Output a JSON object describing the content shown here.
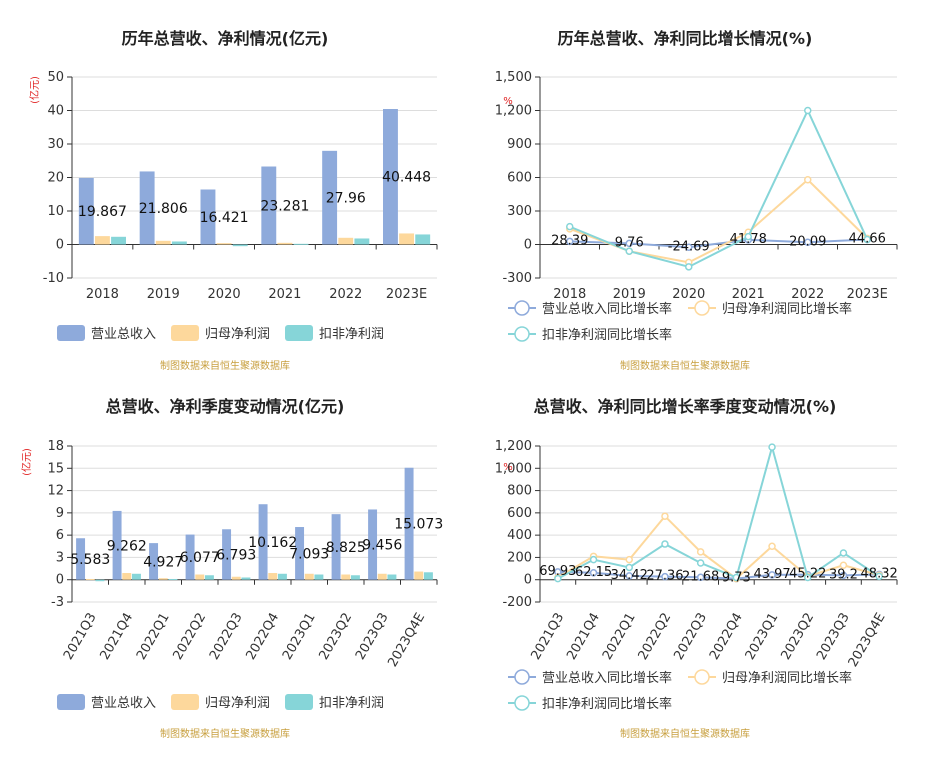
{
  "colors": {
    "revenue": "#8eaadb",
    "parent_profit": "#fdd89c",
    "deducted_profit": "#86d5d8",
    "grid": "#dddddd",
    "axis": "#333333",
    "unit": "#e02020",
    "source": "#c8a040",
    "title": "#222222"
  },
  "source_note": "制图数据来自恒生聚源数据库",
  "chart_data": [
    {
      "id": "annual-amount",
      "type": "bar",
      "title": "历年总营收、净利情况(亿元)",
      "unit": "(亿元)",
      "ylim": [
        -10,
        50
      ],
      "yticks": [
        -10,
        0,
        10,
        20,
        30,
        40,
        50
      ],
      "grid": true,
      "legend_position": "bottom",
      "categories": [
        "2018",
        "2019",
        "2020",
        "2021",
        "2022",
        "2023E"
      ],
      "series": [
        {
          "name": "营业总收入",
          "values": [
            19.867,
            21.806,
            16.421,
            23.281,
            27.96,
            40.448
          ],
          "labels": [
            "19.867",
            "21.806",
            "16.421",
            "23.281",
            "27.96",
            "40.448"
          ]
        },
        {
          "name": "归母净利润",
          "values": [
            2.5,
            1.1,
            0.4,
            0.5,
            2.0,
            3.3
          ]
        },
        {
          "name": "扣非净利润",
          "values": [
            2.3,
            0.9,
            -0.5,
            0.2,
            1.8,
            3.0
          ]
        }
      ]
    },
    {
      "id": "annual-growth",
      "type": "line",
      "title": "历年总营收、净利同比增长情况(%)",
      "unit": "%",
      "ylim": [
        -300,
        1500
      ],
      "yticks": [
        -300,
        0,
        300,
        600,
        900,
        1200,
        1500
      ],
      "ytick_labels": [
        "-300",
        "0",
        "300",
        "600",
        "900",
        "1,200",
        "1,500"
      ],
      "grid": true,
      "legend_position": "bottom",
      "categories": [
        "2018",
        "2019",
        "2020",
        "2021",
        "2022",
        "2023E"
      ],
      "series": [
        {
          "name": "营业总收入同比增长率",
          "values": [
            28.39,
            9.76,
            -24.69,
            41.78,
            20.09,
            44.66
          ],
          "labels": [
            "28.39",
            "9.76",
            "-24.69",
            "41.78",
            "20.09",
            "44.66"
          ]
        },
        {
          "name": "归母净利润同比增长率",
          "values": [
            140,
            -60,
            -160,
            110,
            580,
            55
          ]
        },
        {
          "name": "扣非净利润同比增长率",
          "values": [
            160,
            -60,
            -200,
            70,
            1200,
            45
          ]
        }
      ]
    },
    {
      "id": "quarterly-amount",
      "type": "bar",
      "title": "总营收、净利季度变动情况(亿元)",
      "unit": "(亿元)",
      "ylim": [
        -3,
        18
      ],
      "yticks": [
        -3,
        0,
        3,
        6,
        9,
        12,
        15,
        18
      ],
      "grid": true,
      "legend_position": "bottom",
      "categories": [
        "2021Q3",
        "2021Q4",
        "2022Q1",
        "2022Q2",
        "2022Q3",
        "2022Q4",
        "2023Q1",
        "2023Q2",
        "2023Q3",
        "2023Q4E"
      ],
      "series": [
        {
          "name": "营业总收入",
          "values": [
            5.583,
            9.262,
            4.927,
            6.077,
            6.793,
            10.162,
            7.093,
            8.825,
            9.456,
            15.073
          ],
          "labels": [
            "5.583",
            "9.262",
            "4.927",
            "6.077",
            "6.793",
            "10.162",
            "7.093",
            "8.825",
            "9.456",
            "15.073"
          ]
        },
        {
          "name": "归母净利润",
          "values": [
            0.1,
            0.9,
            0.2,
            0.7,
            0.4,
            0.9,
            0.8,
            0.7,
            0.8,
            1.1
          ]
        },
        {
          "name": "扣非净利润",
          "values": [
            -0.2,
            0.8,
            0.1,
            0.6,
            0.3,
            0.8,
            0.7,
            0.6,
            0.7,
            1.0
          ]
        }
      ]
    },
    {
      "id": "quarterly-growth",
      "type": "line",
      "title": "总营收、净利同比增长率季度变动情况(%)",
      "unit": "%",
      "ylim": [
        -200,
        1200
      ],
      "yticks": [
        -200,
        0,
        200,
        400,
        600,
        800,
        1000,
        1200
      ],
      "ytick_labels": [
        "-200",
        "0",
        "200",
        "400",
        "600",
        "800",
        "1,000",
        "1,200"
      ],
      "grid": true,
      "legend_position": "bottom",
      "categories": [
        "2021Q3",
        "2021Q4",
        "2022Q1",
        "2022Q2",
        "2022Q3",
        "2022Q4",
        "2023Q1",
        "2023Q2",
        "2023Q3",
        "2023Q4E"
      ],
      "series": [
        {
          "name": "营业总收入同比增长率",
          "values": [
            69.93,
            62.15,
            34.42,
            27.36,
            21.68,
            9.73,
            43.97,
            45.22,
            39.2,
            48.32
          ],
          "labels": [
            "69.93",
            "62.15",
            "34.42",
            "27.36",
            "21.68",
            "9.73",
            "43.97",
            "45.22",
            "39.2",
            "48.32"
          ]
        },
        {
          "name": "归母净利润同比增长率",
          "values": [
            20,
            210,
            180,
            570,
            250,
            10,
            300,
            30,
            130,
            40
          ]
        },
        {
          "name": "扣非净利润同比增长率",
          "values": [
            10,
            180,
            110,
            320,
            150,
            20,
            1190,
            20,
            240,
            30
          ]
        }
      ]
    }
  ]
}
